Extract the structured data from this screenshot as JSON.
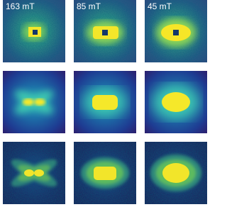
{
  "labels": [
    "163 mT",
    "85 mT",
    "45 mT"
  ]
}
